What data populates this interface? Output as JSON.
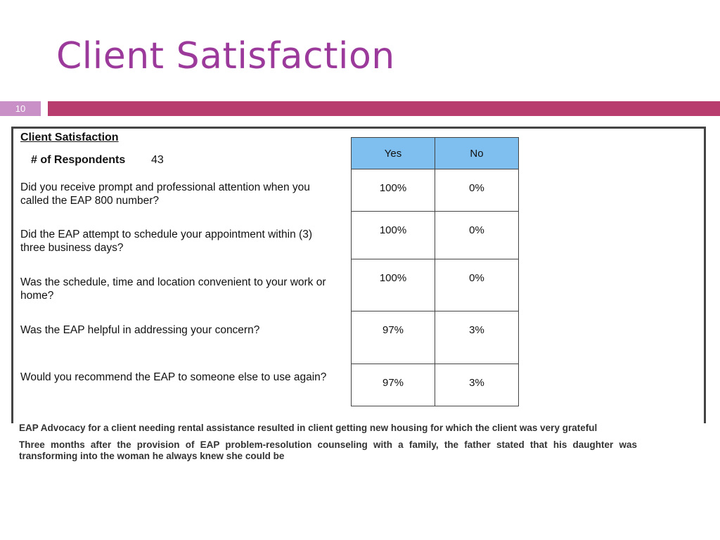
{
  "slide": {
    "title": "Client Satisfaction",
    "page_number": "10",
    "accent_color": "#b83c6e",
    "title_color": "#9b3a9b"
  },
  "survey": {
    "heading": "Client Satisfaction",
    "respondents_label": "# of Respondents",
    "respondents_count": "43",
    "columns": [
      "Yes",
      "No"
    ],
    "header_color": "#7fbfef",
    "rows": [
      {
        "question": "Did you receive prompt and professional attention when you called the EAP 800 number?",
        "yes": "100%",
        "no": "0%"
      },
      {
        "question": "Did the EAP attempt to schedule your appointment within (3) three business days?",
        "yes": "100%",
        "no": "0%"
      },
      {
        "question": "Was the schedule, time and location convenient to your work or home?",
        "yes": "100%",
        "no": "0%"
      },
      {
        "question": "Was the EAP helpful in addressing your concern?",
        "yes": "97%",
        "no": "3%"
      },
      {
        "question": "Would you recommend the EAP to someone else to use again?",
        "yes": "97%",
        "no": "3%"
      }
    ]
  },
  "notes": [
    "EAP Advocacy for a client needing rental assistance resulted in client getting new housing for which the client was very  grateful",
    "Three months after the provision of EAP problem-resolution counseling with a family, the father stated that his daughter was transforming into the woman he always knew she could be"
  ]
}
